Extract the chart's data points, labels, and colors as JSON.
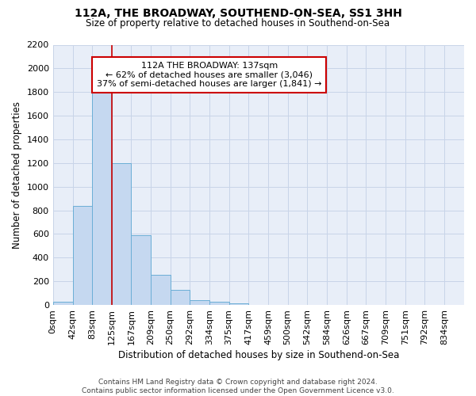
{
  "title": "112A, THE BROADWAY, SOUTHEND-ON-SEA, SS1 3HH",
  "subtitle": "Size of property relative to detached houses in Southend-on-Sea",
  "xlabel": "Distribution of detached houses by size in Southend-on-Sea",
  "ylabel": "Number of detached properties",
  "bar_labels": [
    "0sqm",
    "42sqm",
    "83sqm",
    "125sqm",
    "167sqm",
    "209sqm",
    "250sqm",
    "292sqm",
    "334sqm",
    "375sqm",
    "417sqm",
    "459sqm",
    "500sqm",
    "542sqm",
    "584sqm",
    "626sqm",
    "667sqm",
    "709sqm",
    "751sqm",
    "792sqm",
    "834sqm"
  ],
  "bar_values": [
    25,
    840,
    1800,
    1200,
    590,
    255,
    125,
    42,
    27,
    17,
    0,
    0,
    0,
    0,
    0,
    0,
    0,
    0,
    0,
    0,
    0
  ],
  "bar_color": "#c5d8f0",
  "bar_edge_color": "#6baed6",
  "annotation_line1": "112A THE BROADWAY: 137sqm",
  "annotation_line2": "← 62% of detached houses are smaller (3,046)",
  "annotation_line3": "37% of semi-detached houses are larger (1,841) →",
  "vline_color": "#cc0000",
  "ylim": [
    0,
    2200
  ],
  "yticks": [
    0,
    200,
    400,
    600,
    800,
    1000,
    1200,
    1400,
    1600,
    1800,
    2000,
    2200
  ],
  "grid_color": "#c8d4e8",
  "background_color": "#e8eef8",
  "footer": "Contains HM Land Registry data © Crown copyright and database right 2024.\nContains public sector information licensed under the Open Government Licence v3.0.",
  "annotation_box_facecolor": "#ffffff",
  "annotation_box_edgecolor": "#cc0000"
}
